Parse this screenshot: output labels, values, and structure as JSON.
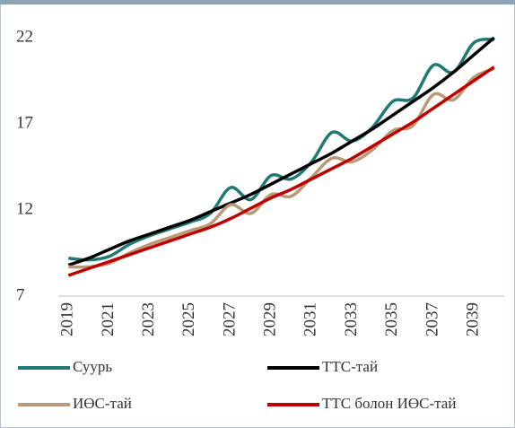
{
  "chart_data": {
    "type": "line",
    "categories": [
      "2019",
      null,
      "2021",
      null,
      "2023",
      null,
      "2025",
      null,
      "2027",
      null,
      "2029",
      null,
      "2031",
      null,
      "2033",
      null,
      "2035",
      null,
      "2037",
      null,
      "2039",
      null
    ],
    "series": [
      {
        "name": "Суурь",
        "color": "#1f7a73",
        "values": [
          9.2,
          9.1,
          9.3,
          10.0,
          10.5,
          10.9,
          11.3,
          11.8,
          13.3,
          12.6,
          14.0,
          13.8,
          14.8,
          16.5,
          16.0,
          16.8,
          18.3,
          18.5,
          20.4,
          20.0,
          21.7,
          21.9
        ]
      },
      {
        "name": "ТТС-тай",
        "color": "#000000",
        "values": [
          8.8,
          9.2,
          9.7,
          10.2,
          10.6,
          11.0,
          11.4,
          11.9,
          12.4,
          12.9,
          13.5,
          14.1,
          14.7,
          15.3,
          16.0,
          16.7,
          17.5,
          18.3,
          19.1,
          20.0,
          21.0,
          22.0
        ]
      },
      {
        "name": "ИӨС-тай",
        "color": "#b89a78",
        "values": [
          8.7,
          8.7,
          8.9,
          9.5,
          10.0,
          10.4,
          10.8,
          11.2,
          12.3,
          11.8,
          12.9,
          12.8,
          13.9,
          15.0,
          14.8,
          15.5,
          16.6,
          16.9,
          18.7,
          18.4,
          19.7,
          20.2
        ]
      },
      {
        "name": "ТТС болон ИӨС-тай",
        "color": "#c00000",
        "values": [
          8.2,
          8.6,
          9.0,
          9.4,
          9.8,
          10.2,
          10.6,
          11.0,
          11.5,
          12.1,
          12.7,
          13.2,
          13.8,
          14.4,
          15.0,
          15.7,
          16.4,
          17.1,
          17.9,
          18.7,
          19.5,
          20.3
        ]
      }
    ],
    "ylim": [
      7,
      22
    ],
    "yticks": [
      7,
      12,
      17,
      22
    ],
    "grid": false,
    "legend": "bottom"
  }
}
